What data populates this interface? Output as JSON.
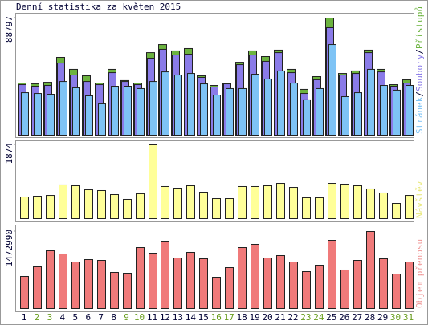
{
  "chart_data": [
    {
      "type": "bar",
      "title": "Denní statistika za květen 2015",
      "legend_separator": "/",
      "ylim": [
        0,
        88797
      ],
      "yticks": [
        88797
      ],
      "series": [
        {
          "name": "Stránek",
          "color": "#7ec3f5",
          "label_color": "#7ec3f5",
          "values": [
            32200,
            31600,
            31000,
            40700,
            35900,
            29800,
            24300,
            37100,
            37100,
            35300,
            40700,
            48000,
            45600,
            46800,
            38900,
            30400,
            35300,
            35300,
            46200,
            42600,
            48700,
            39500,
            26800,
            35300,
            68700,
            29200,
            32200,
            49900,
            37700,
            34100,
            37700
          ]
        },
        {
          "name": "Soubory",
          "color": "#8a7be8",
          "label_color": "#8a7be8",
          "values": [
            38300,
            37100,
            37700,
            54700,
            45600,
            40700,
            38300,
            47400,
            40700,
            38300,
            58400,
            65100,
            60800,
            61400,
            43800,
            36500,
            38900,
            53500,
            60800,
            56000,
            62600,
            47400,
            31600,
            42000,
            81500,
            45600,
            46800,
            62600,
            48000,
            37100,
            39500
          ]
        },
        {
          "name": "Přístupů",
          "color": "#6cb33f",
          "label_color": "#6cb33f",
          "values": [
            39500,
            38900,
            40100,
            59000,
            49900,
            45000,
            39500,
            49900,
            41400,
            39500,
            62600,
            68700,
            63900,
            65700,
            45000,
            37700,
            39500,
            55300,
            63900,
            59600,
            64500,
            49900,
            34700,
            44400,
            88797,
            46800,
            48700,
            64500,
            49900,
            38300,
            42000
          ]
        }
      ]
    },
    {
      "type": "bar",
      "ylim": [
        0,
        1874
      ],
      "yticks": [
        1874
      ],
      "series": [
        {
          "name": "Návštěv",
          "color": "#ffff99",
          "label_color": "#e8e87a",
          "values": [
            550,
            570,
            590,
            856,
            835,
            733,
            713,
            611,
            489,
            632,
            1874,
            815,
            774,
            835,
            672,
            509,
            509,
            815,
            815,
            835,
            896,
            794,
            530,
            530,
            896,
            876,
            835,
            754,
            652,
            387,
            590
          ]
        }
      ]
    },
    {
      "type": "bar",
      "ylim": [
        0,
        1472990
      ],
      "yticks": [
        1472990
      ],
      "categories": [
        "1",
        "2",
        "3",
        "4",
        "5",
        "6",
        "7",
        "8",
        "9",
        "10",
        "11",
        "12",
        "13",
        "14",
        "15",
        "16",
        "17",
        "18",
        "19",
        "20",
        "21",
        "22",
        "23",
        "24",
        "25",
        "26",
        "27",
        "28",
        "29",
        "30",
        "31"
      ],
      "category_colors": [
        "#000033",
        "#6a9e20",
        "#6a9e20",
        "#000033",
        "#000033",
        "#000033",
        "#000033",
        "#000033",
        "#6a9e20",
        "#6a9e20",
        "#000033",
        "#000033",
        "#000033",
        "#000033",
        "#000033",
        "#6a9e20",
        "#6a9e20",
        "#000033",
        "#000033",
        "#000033",
        "#000033",
        "#000033",
        "#6a9e20",
        "#6a9e20",
        "#000033",
        "#000033",
        "#000033",
        "#000033",
        "#000033",
        "#6a9e20",
        "#6a9e20"
      ],
      "series": [
        {
          "name": "Objem přenosu",
          "color": "#f07a7a",
          "label_color": "#f09a9a",
          "values": [
            613800,
            797900,
            1104800,
            1043400,
            889900,
            935900,
            920600,
            690500,
            675100,
            1166000,
            1058700,
            1288900,
            966700,
            1074100,
            951300,
            598400,
            782500,
            1166000,
            1227500,
            966700,
            1012700,
            889900,
            705800,
            828600,
            1304200,
            736500,
            920600,
            1472990,
            951300,
            659800,
            889900
          ]
        }
      ]
    }
  ]
}
